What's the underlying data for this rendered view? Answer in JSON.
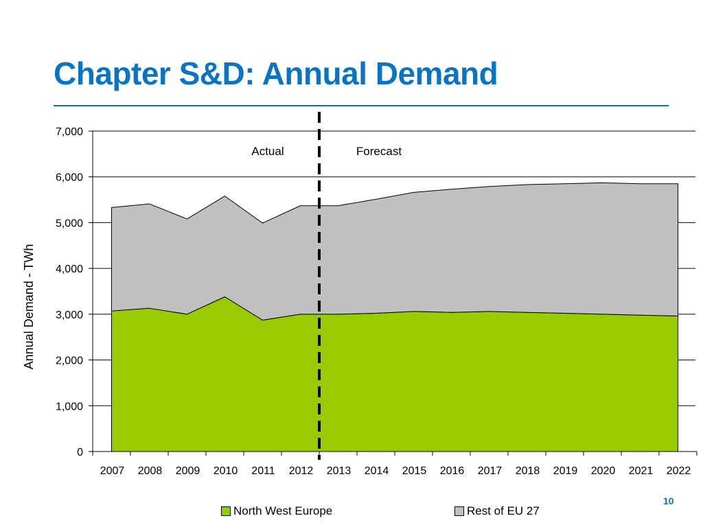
{
  "slide": {
    "title": "Chapter S&D: Annual Demand",
    "page_number": "10"
  },
  "colors": {
    "title": "#0a74c4",
    "north_west_europe": "#99cc00",
    "rest_of_eu_27": "#c0c0c0"
  },
  "chart_data": {
    "type": "area",
    "stacked": true,
    "title": "",
    "xlabel": "",
    "ylabel": "Annual Demand - TWh",
    "ylim": [
      0,
      7000
    ],
    "yticks": [
      0,
      1000,
      2000,
      3000,
      4000,
      5000,
      6000,
      7000
    ],
    "ytick_labels": [
      "0",
      "1,000",
      "2,000",
      "3,000",
      "4,000",
      "5,000",
      "6,000",
      "7,000"
    ],
    "categories": [
      "2007",
      "2008",
      "2009",
      "2010",
      "2011",
      "2012",
      "2013",
      "2014",
      "2015",
      "2016",
      "2017",
      "2018",
      "2019",
      "2020",
      "2021",
      "2022"
    ],
    "grid": "horizontal",
    "legend_position": "bottom",
    "series": [
      {
        "name": "North West Europe",
        "color": "#99cc00",
        "values": [
          3070,
          3130,
          3000,
          3380,
          2870,
          3000,
          3000,
          3020,
          3060,
          3040,
          3060,
          3040,
          3020,
          3000,
          2980,
          2960
        ]
      },
      {
        "name": "Rest of EU 27",
        "color": "#c0c0c0",
        "values": [
          2260,
          2280,
          2080,
          2200,
          2120,
          2370,
          2370,
          2490,
          2600,
          2690,
          2730,
          2790,
          2830,
          2870,
          2870,
          2890
        ]
      }
    ],
    "annotations": [
      {
        "text": "Actual"
      },
      {
        "text": "Forecast"
      }
    ],
    "divider_after_category": "2012"
  }
}
